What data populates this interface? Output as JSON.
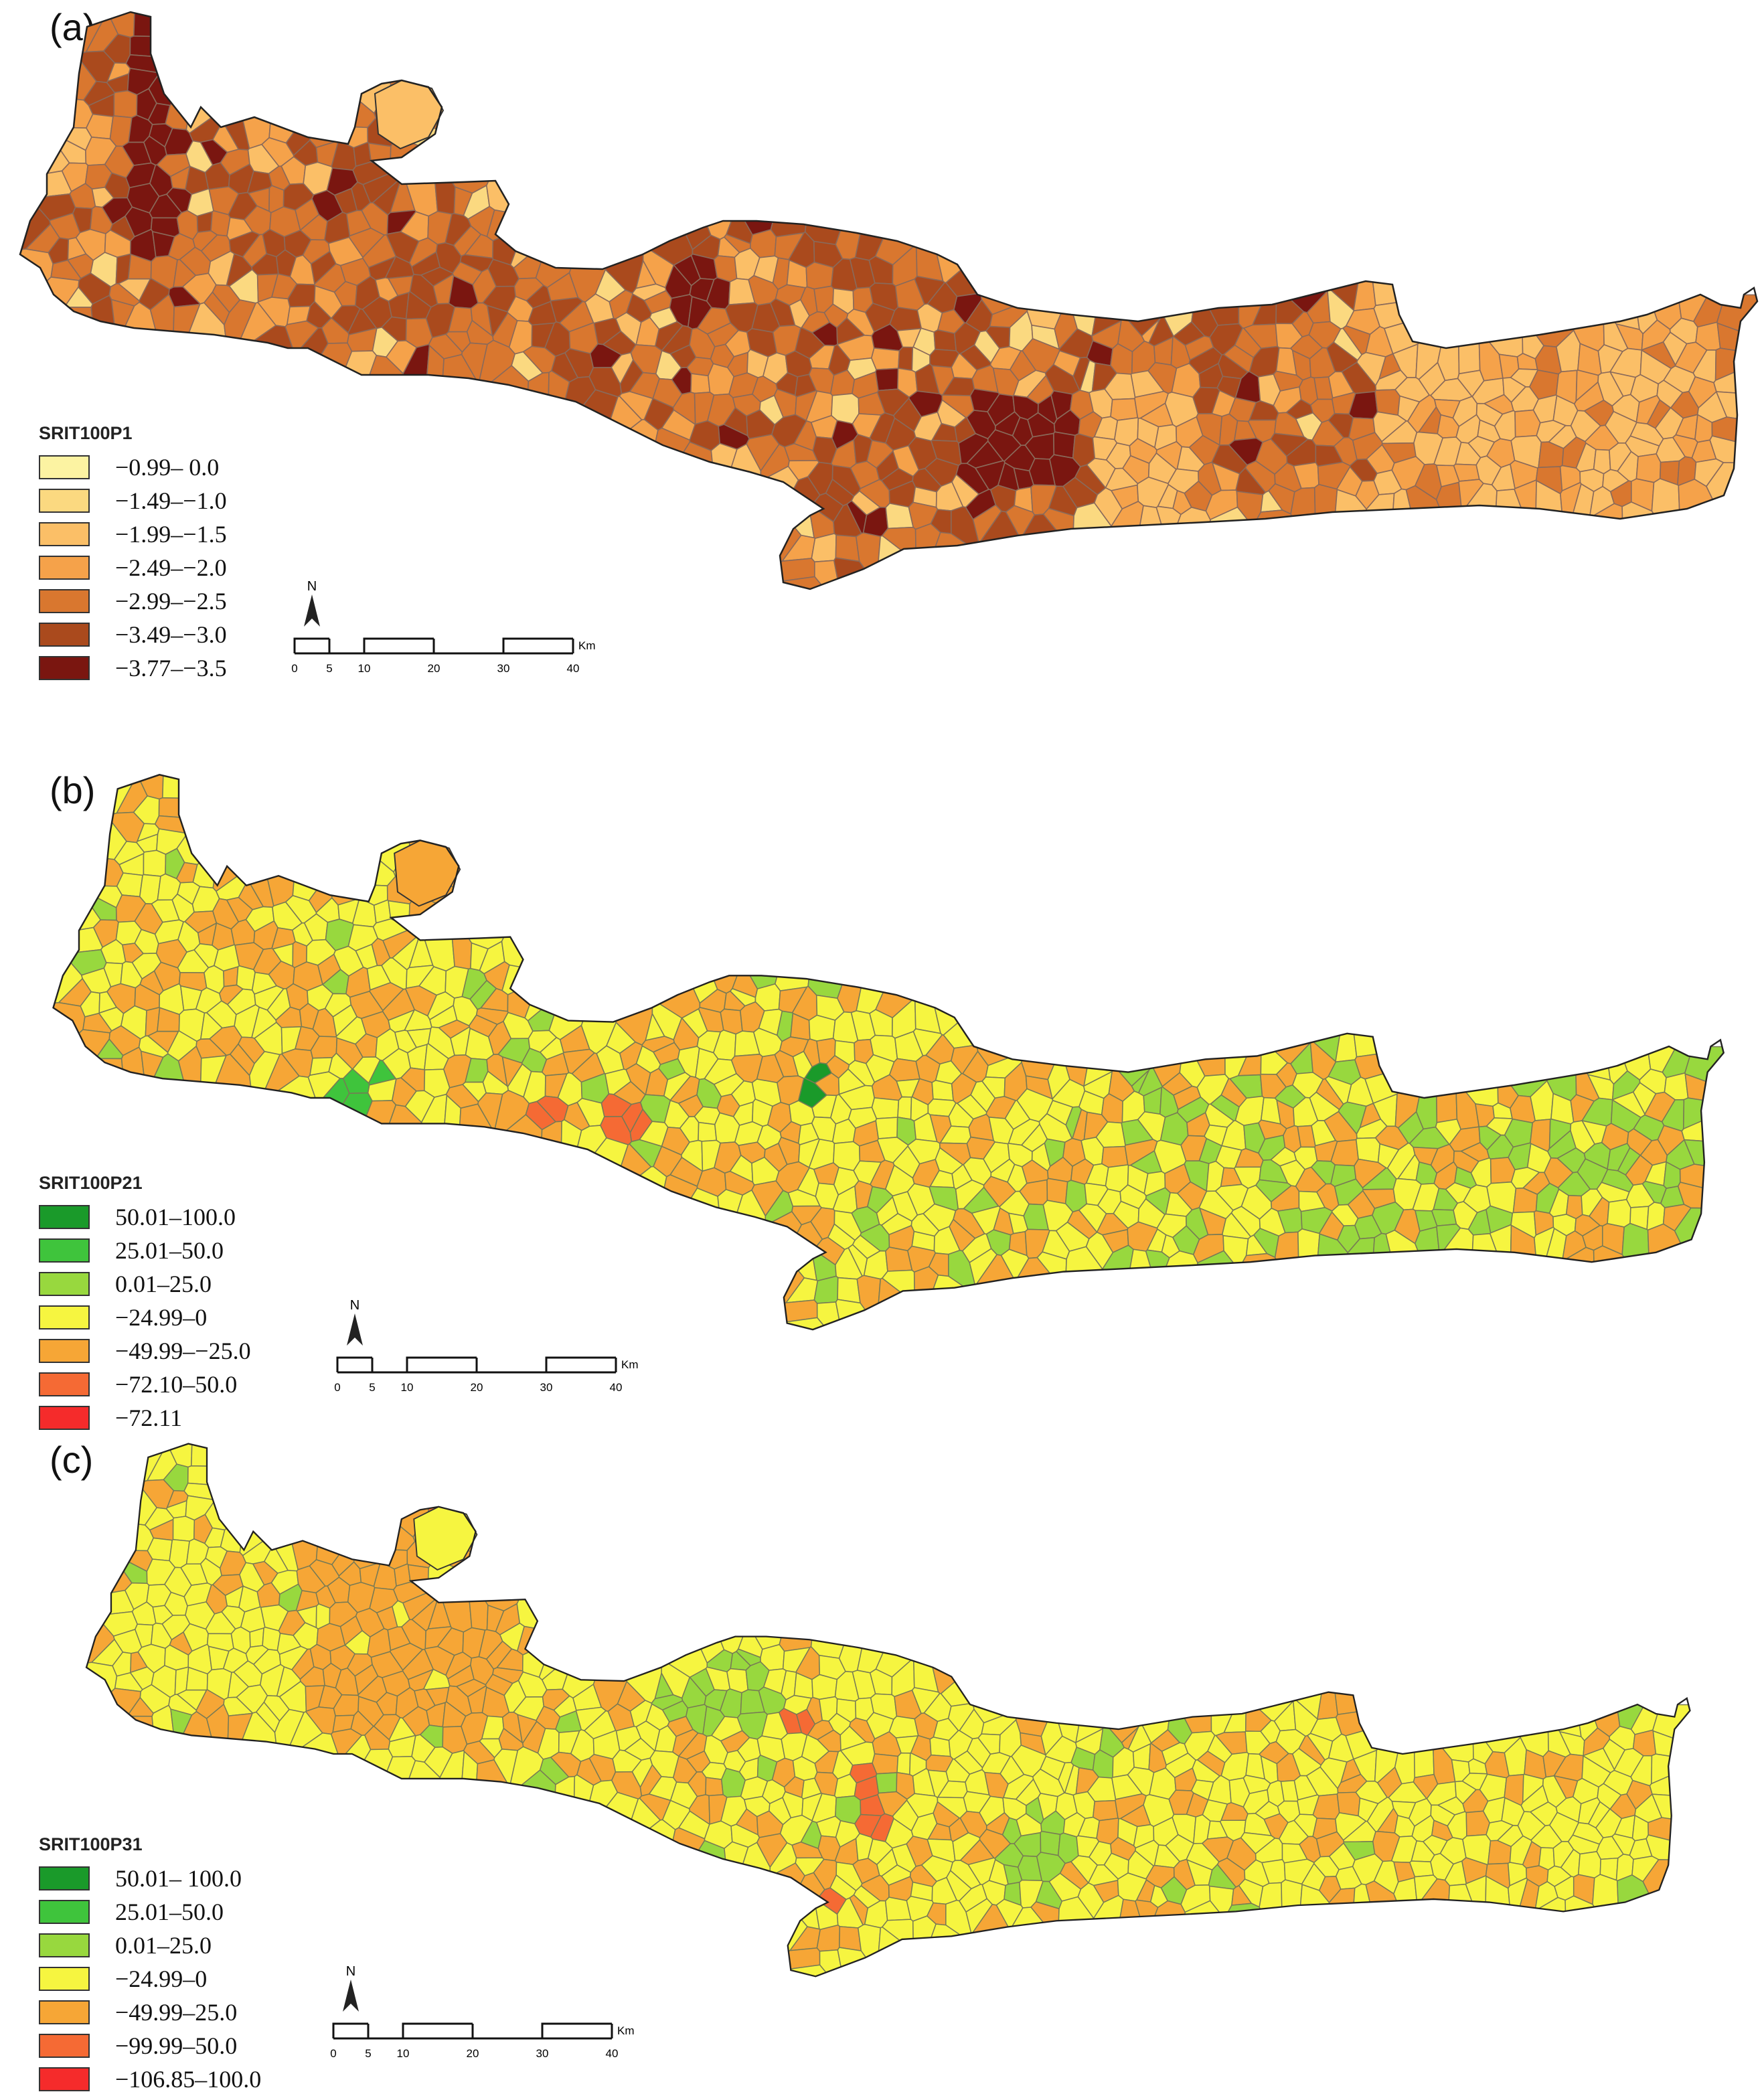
{
  "panels": [
    {
      "label": "(a)",
      "legend_title": "SRIT100P1",
      "classes": [
        {
          "label": "−0.99– 0.0",
          "color": "#fcf3a2"
        },
        {
          "label": "−1.49–−1.0",
          "color": "#fbd980"
        },
        {
          "label": "−1.99–−1.5",
          "color": "#fbbf67"
        },
        {
          "label": "−2.49–−2.0",
          "color": "#f5a24a"
        },
        {
          "label": "−2.99–−2.5",
          "color": "#d9772f"
        },
        {
          "label": "−3.49–−3.0",
          "color": "#aa4a1d"
        },
        {
          "label": "−3.77–−3.5",
          "color": "#7a1610"
        }
      ]
    },
    {
      "label": "(b)",
      "legend_title": "SRIT100P21",
      "classes": [
        {
          "label": "50.01–100.0",
          "color": "#1a9a2a"
        },
        {
          "label": "25.01–50.0",
          "color": "#3fc43c"
        },
        {
          "label": "0.01–25.0",
          "color": "#98d83e"
        },
        {
          "label": "−24.99–0",
          "color": "#f6f540"
        },
        {
          "label": "−49.99–−25.0",
          "color": "#f6a636"
        },
        {
          "label": "−72.10–50.0",
          "color": "#f56a34"
        },
        {
          "label": "−72.11",
          "color": "#f52b2b"
        }
      ]
    },
    {
      "label": "(c)",
      "legend_title": "SRIT100P31",
      "classes": [
        {
          "label": "50.01– 100.0",
          "color": "#1a9a2a"
        },
        {
          "label": "25.01–50.0",
          "color": "#3fc43c"
        },
        {
          "label": "0.01–25.0",
          "color": "#98d83e"
        },
        {
          "label": "−24.99–0",
          "color": "#f6f540"
        },
        {
          "label": "−49.99–25.0",
          "color": "#f6a636"
        },
        {
          "label": "−99.99–50.0",
          "color": "#f56a34"
        },
        {
          "label": "−106.85–100.0",
          "color": "#f52b2b"
        }
      ]
    }
  ],
  "scalebar": {
    "north": "N",
    "ticks": [
      "0",
      "5",
      "10",
      "20",
      "30",
      "40"
    ],
    "unit": "Km"
  }
}
